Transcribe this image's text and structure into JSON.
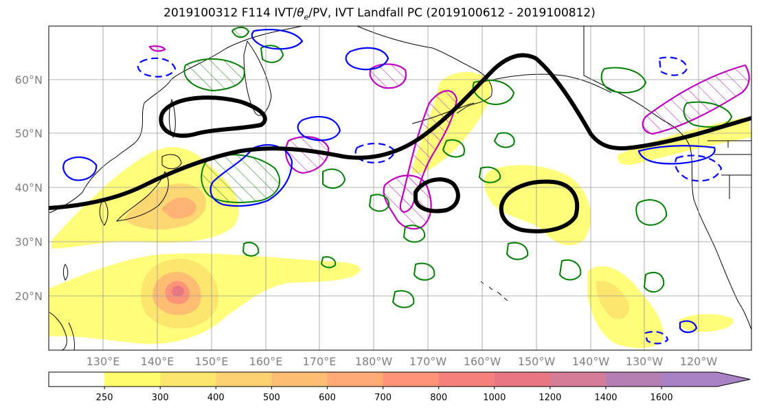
{
  "title": {
    "prefix": "2019100312 F114 IVT/",
    "theta_symbol": "θ",
    "theta_sub": "e",
    "suffix": "/PV, IVT Landfall PC (2019100612 - 2019100812)"
  },
  "map": {
    "lat_labels": [
      "60°N",
      "50°N",
      "40°N",
      "30°N",
      "20°N"
    ],
    "lon_labels": [
      "130°E",
      "140°E",
      "150°E",
      "160°E",
      "170°E",
      "180°W",
      "170°W",
      "160°W",
      "150°W",
      "140°W",
      "130°W",
      "120°W"
    ],
    "colors": {
      "land_outline": "#000000",
      "jet_contour": "#000000",
      "theta_e_contour": "#008000",
      "pv_contour_solid": "#0000ff",
      "pv_contour_dashed": "#0000ff",
      "landfall_pc_contour": "#bf00bf",
      "grid": "#999999",
      "tick_label": "#808080"
    }
  },
  "colorbar": {
    "levels": [
      "250",
      "300",
      "400",
      "500",
      "600",
      "700",
      "800",
      "1000",
      "1200",
      "1400",
      "1600"
    ],
    "colors": [
      "#ffffff",
      "#fffd6b",
      "#fde66e",
      "#fdd070",
      "#fdbd72",
      "#fdaa74",
      "#fd9377",
      "#f6817b",
      "#e87784",
      "#d57c98",
      "#b57fb3",
      "#a882c5"
    ],
    "extend": "max"
  }
}
